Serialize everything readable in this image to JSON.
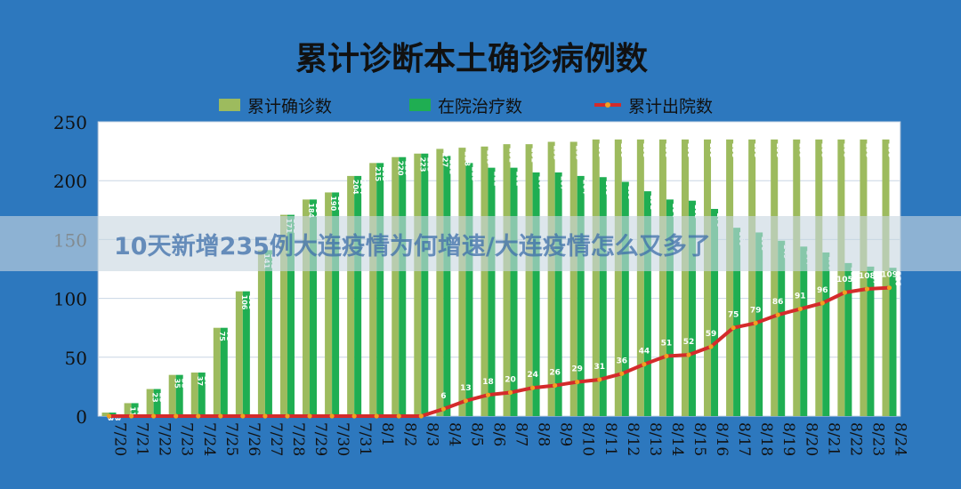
{
  "chart_data": {
    "type": "bar",
    "title": "累计诊断本土确诊病例数",
    "categories": [
      "7/20",
      "7/21",
      "7/22",
      "7/23",
      "7/24",
      "7/25",
      "7/26",
      "7/27",
      "7/28",
      "7/29",
      "7/30",
      "7/31",
      "8/1",
      "8/2",
      "8/3",
      "8/4",
      "8/5",
      "8/6",
      "8/7",
      "8/8",
      "8/9",
      "8/10",
      "8/11",
      "8/12",
      "8/13",
      "8/14",
      "8/15",
      "8/16",
      "8/17",
      "8/18",
      "8/19",
      "8/20",
      "8/21",
      "8/22",
      "8/23",
      "8/24"
    ],
    "series": [
      {
        "name": "累计确诊数",
        "type": "bar",
        "color": "#9dbb5e",
        "values": [
          3,
          11,
          23,
          35,
          37,
          75,
          106,
          141,
          171,
          184,
          190,
          204,
          215,
          220,
          223,
          227,
          228,
          229,
          231,
          231,
          233,
          233,
          235,
          235,
          235,
          235,
          235,
          235,
          235,
          235,
          235,
          235,
          235,
          235,
          235,
          235
        ]
      },
      {
        "name": "在院治疗数",
        "type": "bar",
        "color": "#1fae52",
        "values": [
          3,
          11,
          23,
          35,
          37,
          75,
          106,
          141,
          171,
          184,
          190,
          204,
          215,
          220,
          223,
          221,
          215,
          211,
          211,
          207,
          207,
          204,
          203,
          199,
          191,
          184,
          183,
          176,
          160,
          156,
          149,
          144,
          139,
          130,
          127,
          126
        ]
      },
      {
        "name": "累计出院数",
        "type": "line",
        "color": "#d42b2b",
        "marker_color": "#f0a020",
        "values": [
          0,
          0,
          0,
          0,
          0,
          0,
          0,
          0,
          0,
          0,
          0,
          0,
          0,
          0,
          0,
          6,
          13,
          18,
          20,
          24,
          26,
          29,
          31,
          36,
          44,
          51,
          52,
          59,
          75,
          79,
          86,
          91,
          96,
          105,
          108,
          109
        ]
      }
    ],
    "bar_labels": [
      "3",
      "11",
      "23",
      "35",
      "37",
      "75",
      "106",
      "141",
      "171",
      "184",
      "190",
      "204",
      "215",
      "220",
      "223",
      "227",
      "228",
      "229",
      "231",
      "231",
      "233",
      "233",
      "235",
      "235",
      "235",
      "235",
      "235",
      "235",
      "235",
      "235",
      "235",
      "235",
      "235",
      "235",
      "235",
      "235"
    ],
    "bar2_labels": [
      "3",
      "11",
      "23",
      "35",
      "37",
      "75",
      "106",
      "141",
      "171",
      "184",
      "190",
      "204",
      "215",
      "220",
      "223",
      "221",
      "215",
      "211",
      "211",
      "207",
      "207",
      "204",
      "203",
      "199",
      "191",
      "184",
      "183",
      "176",
      "160",
      "156",
      "149",
      "144",
      "139",
      "130",
      "127",
      "126"
    ],
    "line_labels": [
      "",
      "",
      "",
      "",
      "",
      "",
      "",
      "",
      "",
      "",
      "",
      "",
      "",
      "",
      "",
      "6",
      "13",
      "18",
      "20",
      "24",
      "26",
      "29",
      "31",
      "36",
      "44",
      "51",
      "52",
      "59",
      "75",
      "79",
      "86",
      "91",
      "96",
      "105",
      "108",
      "109"
    ],
    "ylim": [
      0,
      250
    ],
    "yticks": [
      "0",
      "50",
      "100",
      "150",
      "200",
      "250"
    ],
    "legend_position": "top",
    "grid": true
  },
  "watermark": "10天新增235例大连疫情为何增速/大连疫情怎么又多了"
}
